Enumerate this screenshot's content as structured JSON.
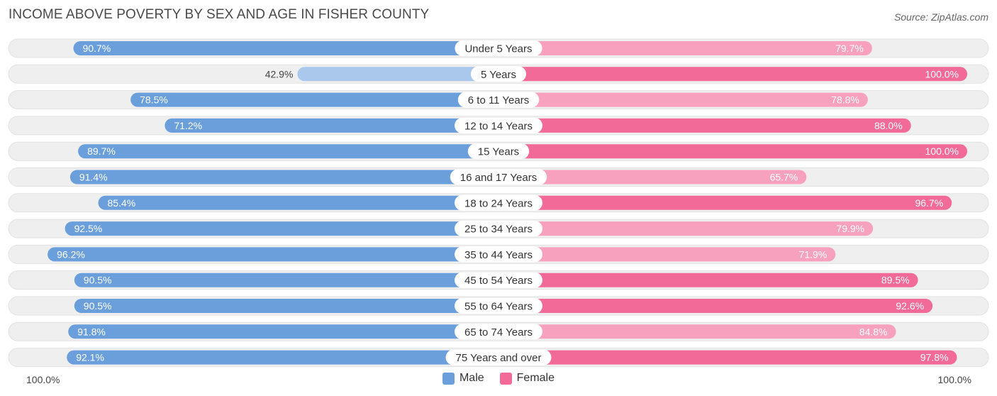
{
  "title": "INCOME ABOVE POVERTY BY SEX AND AGE IN FISHER COUNTY",
  "source": "Source: ZipAtlas.com",
  "colors": {
    "male_strong": "#6a9fdc",
    "male_light": "#a9c8ec",
    "female_strong": "#f26a97",
    "female_light": "#f7a1bf",
    "track": "#efefef"
  },
  "axis": {
    "left_label": "100.0%",
    "right_label": "100.0%"
  },
  "legend": {
    "male": "Male",
    "female": "Female"
  },
  "chart_data": {
    "type": "bar",
    "orientation": "horizontal-diverging",
    "title": "INCOME ABOVE POVERTY BY SEX AND AGE IN FISHER COUNTY",
    "xlim": [
      0,
      100
    ],
    "unit": "%",
    "categories": [
      "Under 5 Years",
      "5 Years",
      "6 to 11 Years",
      "12 to 14 Years",
      "15 Years",
      "16 and 17 Years",
      "18 to 24 Years",
      "25 to 34 Years",
      "35 to 44 Years",
      "45 to 54 Years",
      "55 to 64 Years",
      "65 to 74 Years",
      "75 Years and over"
    ],
    "series": [
      {
        "name": "Male",
        "values": [
          90.7,
          42.9,
          78.5,
          71.2,
          89.7,
          91.4,
          85.4,
          92.5,
          96.2,
          90.5,
          90.5,
          91.8,
          92.1
        ],
        "labels": [
          "90.7%",
          "42.9%",
          "78.5%",
          "71.2%",
          "89.7%",
          "91.4%",
          "85.4%",
          "92.5%",
          "96.2%",
          "90.5%",
          "90.5%",
          "91.8%",
          "92.1%"
        ]
      },
      {
        "name": "Female",
        "values": [
          79.7,
          100.0,
          78.8,
          88.0,
          100.0,
          65.7,
          96.7,
          79.9,
          71.9,
          89.5,
          92.6,
          84.8,
          97.8
        ],
        "labels": [
          "79.7%",
          "100.0%",
          "78.8%",
          "88.0%",
          "100.0%",
          "65.7%",
          "96.7%",
          "79.9%",
          "71.9%",
          "89.5%",
          "92.6%",
          "84.8%",
          "97.8%"
        ]
      }
    ]
  }
}
